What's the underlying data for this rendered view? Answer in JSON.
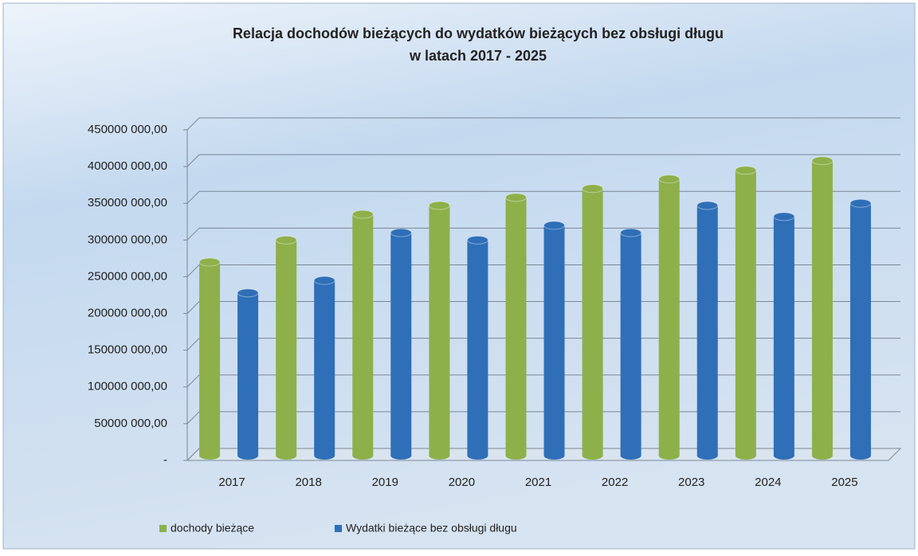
{
  "chart_data": {
    "type": "bar",
    "title": "Relacja dochodów bieżących do wydatków bieżących bez obsługi długu",
    "subtitle": "w latach 2017 - 2025",
    "categories": [
      "2017",
      "2018",
      "2019",
      "2020",
      "2021",
      "2022",
      "2023",
      "2024",
      "2025"
    ],
    "series": [
      {
        "name": "dochody bieżące",
        "color": "#8db04a",
        "values": [
          270000000,
          300000000,
          335000000,
          347000000,
          358000000,
          370000000,
          383000000,
          395000000,
          408000000
        ]
      },
      {
        "name": "Wydatki bieżące bez obsługi długu",
        "color": "#2f6fb8",
        "values": [
          228000000,
          245000000,
          310000000,
          300000000,
          320000000,
          310000000,
          347000000,
          332000000,
          350000000
        ]
      }
    ],
    "ylim": [
      0,
      450000000
    ],
    "yticks": [
      {
        "value": 0,
        "label": "-"
      },
      {
        "value": 50000000,
        "label": "50000 000,00"
      },
      {
        "value": 100000000,
        "label": "100000 000,00"
      },
      {
        "value": 150000000,
        "label": "150000 000,00"
      },
      {
        "value": 200000000,
        "label": "200000 000,00"
      },
      {
        "value": 250000000,
        "label": "250000 000,00"
      },
      {
        "value": 300000000,
        "label": "300000 000,00"
      },
      {
        "value": 350000000,
        "label": "350000 000,00"
      },
      {
        "value": 400000000,
        "label": "400000 000,00"
      },
      {
        "value": 450000000,
        "label": "450000 000,00"
      }
    ],
    "grid": true,
    "legend": "bottom"
  }
}
